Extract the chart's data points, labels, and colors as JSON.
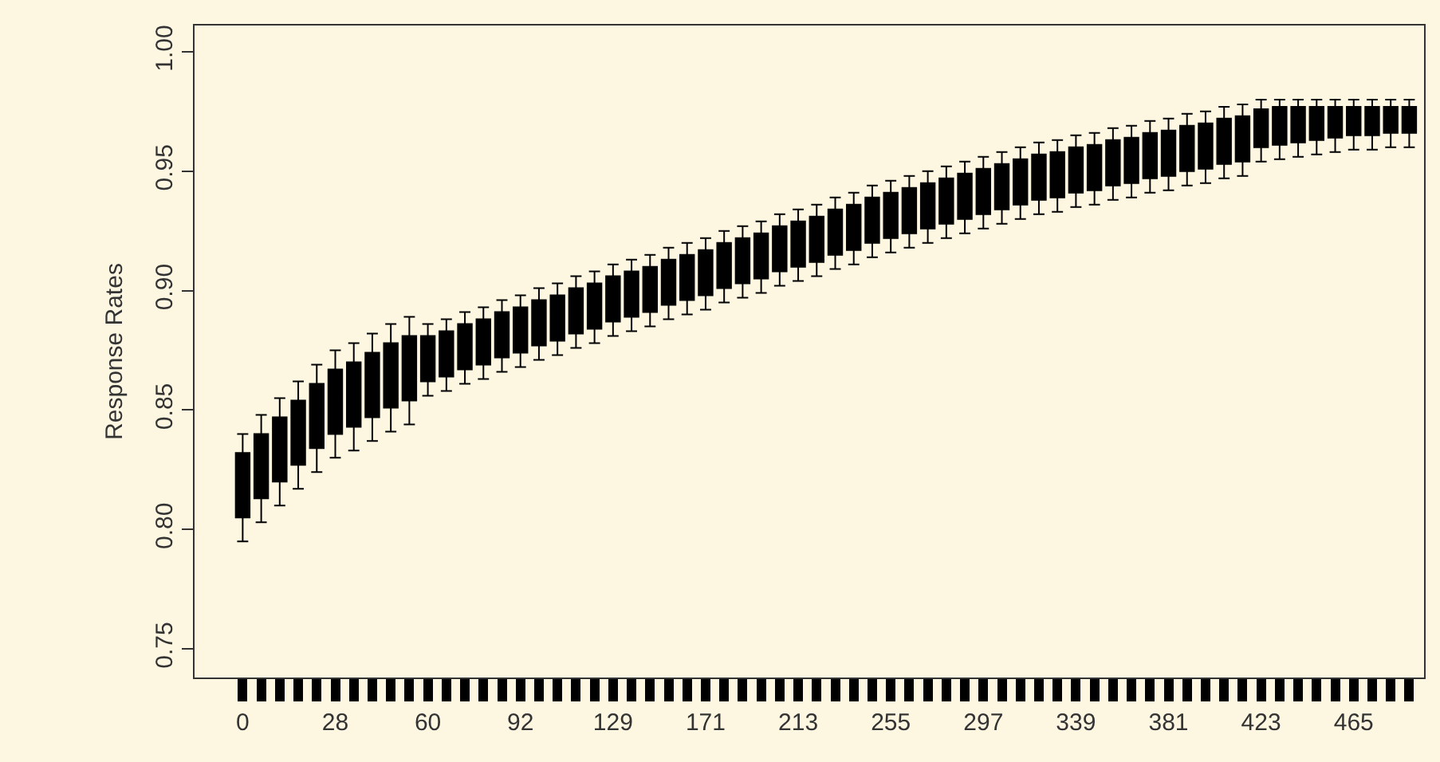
{
  "chart_data": {
    "type": "box",
    "ylabel": "Response Rates",
    "categories": [
      "0",
      null,
      null,
      null,
      null,
      "28",
      null,
      null,
      null,
      null,
      "60",
      null,
      null,
      null,
      null,
      "92",
      null,
      null,
      null,
      null,
      "129",
      null,
      null,
      null,
      null,
      "171",
      null,
      null,
      null,
      null,
      "213",
      null,
      null,
      null,
      null,
      "255",
      null,
      null,
      null,
      null,
      "297",
      null,
      null,
      null,
      null,
      "339",
      null,
      null,
      null,
      null,
      "381",
      null,
      null,
      null,
      null,
      "423",
      null,
      null,
      null,
      null,
      "465",
      null,
      null,
      null
    ],
    "ylim": [
      0.738,
      1.011
    ],
    "yticks": [
      0.75,
      {
        "value": 0.8,
        "label": "0.80"
      },
      0.85,
      {
        "value": 0.9,
        "label": "0.90"
      },
      0.95,
      {
        "value": 1.0,
        "label": "1.00"
      }
    ],
    "grid": false,
    "series": [
      {
        "color": "#000000",
        "boxes": [
          {
            "low": 0.795,
            "q1": 0.805,
            "median": 0.82,
            "q3": 0.832,
            "high": 0.84
          },
          {
            "low": 0.803,
            "q1": 0.813,
            "median": 0.828,
            "q3": 0.84,
            "high": 0.848
          },
          {
            "low": 0.81,
            "q1": 0.82,
            "median": 0.835,
            "q3": 0.847,
            "high": 0.855
          },
          {
            "low": 0.817,
            "q1": 0.827,
            "median": 0.842,
            "q3": 0.854,
            "high": 0.862
          },
          {
            "low": 0.824,
            "q1": 0.834,
            "median": 0.849,
            "q3": 0.861,
            "high": 0.869
          },
          {
            "low": 0.83,
            "q1": 0.84,
            "median": 0.855,
            "q3": 0.867,
            "high": 0.875
          },
          {
            "low": 0.833,
            "q1": 0.843,
            "median": 0.858,
            "q3": 0.87,
            "high": 0.878
          },
          {
            "low": 0.837,
            "q1": 0.847,
            "median": 0.862,
            "q3": 0.874,
            "high": 0.882
          },
          {
            "low": 0.841,
            "q1": 0.851,
            "median": 0.866,
            "q3": 0.878,
            "high": 0.886
          },
          {
            "low": 0.844,
            "q1": 0.854,
            "median": 0.869,
            "q3": 0.881,
            "high": 0.889
          },
          {
            "low": 0.856,
            "q1": 0.862,
            "median": 0.872,
            "q3": 0.881,
            "high": 0.886
          },
          {
            "low": 0.858,
            "q1": 0.864,
            "median": 0.874,
            "q3": 0.883,
            "high": 0.888
          },
          {
            "low": 0.861,
            "q1": 0.867,
            "median": 0.877,
            "q3": 0.886,
            "high": 0.891
          },
          {
            "low": 0.863,
            "q1": 0.869,
            "median": 0.879,
            "q3": 0.888,
            "high": 0.893
          },
          {
            "low": 0.866,
            "q1": 0.872,
            "median": 0.882,
            "q3": 0.891,
            "high": 0.896
          },
          {
            "low": 0.868,
            "q1": 0.874,
            "median": 0.884,
            "q3": 0.893,
            "high": 0.898
          },
          {
            "low": 0.871,
            "q1": 0.877,
            "median": 0.887,
            "q3": 0.896,
            "high": 0.901
          },
          {
            "low": 0.873,
            "q1": 0.879,
            "median": 0.889,
            "q3": 0.898,
            "high": 0.903
          },
          {
            "low": 0.876,
            "q1": 0.882,
            "median": 0.892,
            "q3": 0.901,
            "high": 0.906
          },
          {
            "low": 0.878,
            "q1": 0.884,
            "median": 0.894,
            "q3": 0.903,
            "high": 0.908
          },
          {
            "low": 0.881,
            "q1": 0.887,
            "median": 0.897,
            "q3": 0.906,
            "high": 0.911
          },
          {
            "low": 0.883,
            "q1": 0.889,
            "median": 0.899,
            "q3": 0.908,
            "high": 0.913
          },
          {
            "low": 0.885,
            "q1": 0.891,
            "median": 0.901,
            "q3": 0.91,
            "high": 0.915
          },
          {
            "low": 0.888,
            "q1": 0.894,
            "median": 0.904,
            "q3": 0.913,
            "high": 0.918
          },
          {
            "low": 0.89,
            "q1": 0.896,
            "median": 0.906,
            "q3": 0.915,
            "high": 0.92
          },
          {
            "low": 0.892,
            "q1": 0.898,
            "median": 0.908,
            "q3": 0.917,
            "high": 0.922
          },
          {
            "low": 0.895,
            "q1": 0.901,
            "median": 0.911,
            "q3": 0.92,
            "high": 0.925
          },
          {
            "low": 0.897,
            "q1": 0.903,
            "median": 0.913,
            "q3": 0.922,
            "high": 0.927
          },
          {
            "low": 0.899,
            "q1": 0.905,
            "median": 0.915,
            "q3": 0.924,
            "high": 0.929
          },
          {
            "low": 0.902,
            "q1": 0.908,
            "median": 0.918,
            "q3": 0.927,
            "high": 0.932
          },
          {
            "low": 0.904,
            "q1": 0.91,
            "median": 0.92,
            "q3": 0.929,
            "high": 0.934
          },
          {
            "low": 0.906,
            "q1": 0.912,
            "median": 0.922,
            "q3": 0.931,
            "high": 0.936
          },
          {
            "low": 0.909,
            "q1": 0.915,
            "median": 0.925,
            "q3": 0.934,
            "high": 0.939
          },
          {
            "low": 0.911,
            "q1": 0.917,
            "median": 0.927,
            "q3": 0.936,
            "high": 0.941
          },
          {
            "low": 0.914,
            "q1": 0.92,
            "median": 0.93,
            "q3": 0.939,
            "high": 0.944
          },
          {
            "low": 0.916,
            "q1": 0.922,
            "median": 0.932,
            "q3": 0.941,
            "high": 0.946
          },
          {
            "low": 0.918,
            "q1": 0.924,
            "median": 0.934,
            "q3": 0.943,
            "high": 0.948
          },
          {
            "low": 0.92,
            "q1": 0.926,
            "median": 0.936,
            "q3": 0.945,
            "high": 0.95
          },
          {
            "low": 0.922,
            "q1": 0.928,
            "median": 0.938,
            "q3": 0.947,
            "high": 0.952
          },
          {
            "low": 0.924,
            "q1": 0.93,
            "median": 0.94,
            "q3": 0.949,
            "high": 0.954
          },
          {
            "low": 0.926,
            "q1": 0.932,
            "median": 0.942,
            "q3": 0.951,
            "high": 0.956
          },
          {
            "low": 0.928,
            "q1": 0.934,
            "median": 0.944,
            "q3": 0.953,
            "high": 0.958
          },
          {
            "low": 0.93,
            "q1": 0.936,
            "median": 0.946,
            "q3": 0.955,
            "high": 0.96
          },
          {
            "low": 0.932,
            "q1": 0.938,
            "median": 0.948,
            "q3": 0.957,
            "high": 0.962
          },
          {
            "low": 0.933,
            "q1": 0.939,
            "median": 0.949,
            "q3": 0.958,
            "high": 0.963
          },
          {
            "low": 0.935,
            "q1": 0.941,
            "median": 0.951,
            "q3": 0.96,
            "high": 0.965
          },
          {
            "low": 0.936,
            "q1": 0.942,
            "median": 0.952,
            "q3": 0.961,
            "high": 0.966
          },
          {
            "low": 0.938,
            "q1": 0.944,
            "median": 0.954,
            "q3": 0.963,
            "high": 0.968
          },
          {
            "low": 0.939,
            "q1": 0.945,
            "median": 0.955,
            "q3": 0.964,
            "high": 0.969
          },
          {
            "low": 0.941,
            "q1": 0.947,
            "median": 0.957,
            "q3": 0.966,
            "high": 0.971
          },
          {
            "low": 0.942,
            "q1": 0.948,
            "median": 0.958,
            "q3": 0.967,
            "high": 0.972
          },
          {
            "low": 0.944,
            "q1": 0.95,
            "median": 0.96,
            "q3": 0.969,
            "high": 0.974
          },
          {
            "low": 0.945,
            "q1": 0.951,
            "median": 0.961,
            "q3": 0.97,
            "high": 0.975
          },
          {
            "low": 0.947,
            "q1": 0.953,
            "median": 0.963,
            "q3": 0.972,
            "high": 0.977
          },
          {
            "low": 0.948,
            "q1": 0.954,
            "median": 0.964,
            "q3": 0.973,
            "high": 0.978
          },
          {
            "low": 0.954,
            "q1": 0.96,
            "median": 0.966,
            "q3": 0.976,
            "high": 0.98
          },
          {
            "low": 0.955,
            "q1": 0.961,
            "median": 0.967,
            "q3": 0.977,
            "high": 0.98
          },
          {
            "low": 0.956,
            "q1": 0.962,
            "median": 0.968,
            "q3": 0.977,
            "high": 0.98
          },
          {
            "low": 0.957,
            "q1": 0.963,
            "median": 0.969,
            "q3": 0.977,
            "high": 0.98
          },
          {
            "low": 0.958,
            "q1": 0.964,
            "median": 0.97,
            "q3": 0.977,
            "high": 0.98
          },
          {
            "low": 0.959,
            "q1": 0.965,
            "median": 0.971,
            "q3": 0.977,
            "high": 0.98
          },
          {
            "low": 0.959,
            "q1": 0.965,
            "median": 0.971,
            "q3": 0.977,
            "high": 0.98
          },
          {
            "low": 0.96,
            "q1": 0.966,
            "median": 0.972,
            "q3": 0.977,
            "high": 0.98
          },
          {
            "low": 0.96,
            "q1": 0.966,
            "median": 0.972,
            "q3": 0.977,
            "high": 0.98
          }
        ]
      }
    ]
  }
}
